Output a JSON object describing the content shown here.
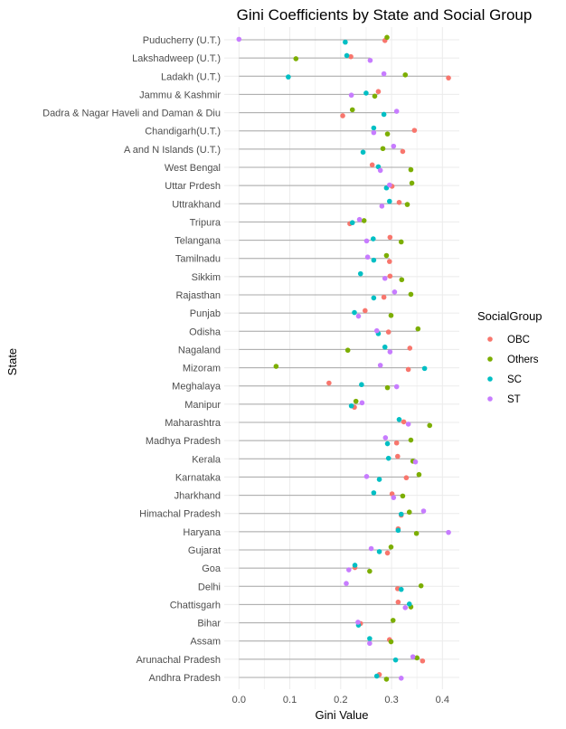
{
  "chart_data": {
    "type": "scatter",
    "title": "Gini Coefficients by State and Social Group",
    "xlabel": "Gini Value",
    "ylabel": "State",
    "xlim": [
      -0.02,
      0.43
    ],
    "xticks": [
      "0.0",
      "0.1",
      "0.2",
      "0.3",
      "0.4"
    ],
    "grid": true,
    "legend": {
      "title": "SocialGroup",
      "position": "right"
    },
    "groups": [
      "OBC",
      "Others",
      "SC",
      "ST"
    ],
    "colors": {
      "OBC": "#F8766D",
      "Others": "#7CAE00",
      "SC": "#00BFC4",
      "ST": "#C77CFF"
    },
    "states": [
      {
        "name": "Puducherry (U.T.)",
        "OBC": 0.287,
        "Others": 0.291,
        "SC": 0.209,
        "ST": 0.0
      },
      {
        "name": "Lakshadweep (U.T.)",
        "OBC": 0.22,
        "Others": 0.112,
        "SC": 0.212,
        "ST": 0.258
      },
      {
        "name": "Ladakh (U.T.)",
        "OBC": 0.412,
        "Others": 0.327,
        "SC": 0.097,
        "ST": 0.285
      },
      {
        "name": "Jammu & Kashmir",
        "OBC": 0.274,
        "Others": 0.267,
        "SC": 0.25,
        "ST": 0.221
      },
      {
        "name": "Dadra & Nagar Haveli and Daman & Diu",
        "OBC": 0.204,
        "Others": 0.223,
        "SC": 0.285,
        "ST": 0.31
      },
      {
        "name": "Chandigarh(U.T.)",
        "OBC": 0.345,
        "Others": 0.292,
        "SC": 0.265,
        "ST": 0.265
      },
      {
        "name": "A and N Islands (U.T.)",
        "OBC": 0.322,
        "Others": 0.283,
        "SC": 0.244,
        "ST": 0.304
      },
      {
        "name": "West Bengal",
        "OBC": 0.262,
        "Others": 0.338,
        "SC": 0.274,
        "ST": 0.278
      },
      {
        "name": "Uttar Prdesh",
        "OBC": 0.301,
        "Others": 0.34,
        "SC": 0.29,
        "ST": 0.296
      },
      {
        "name": "Uttrakhand",
        "OBC": 0.315,
        "Others": 0.331,
        "SC": 0.296,
        "ST": 0.281
      },
      {
        "name": "Tripura",
        "OBC": 0.218,
        "Others": 0.246,
        "SC": 0.223,
        "ST": 0.237
      },
      {
        "name": "Telangana",
        "OBC": 0.297,
        "Others": 0.319,
        "SC": 0.264,
        "ST": 0.251
      },
      {
        "name": "Tamilnadu",
        "OBC": 0.296,
        "Others": 0.29,
        "SC": 0.265,
        "ST": 0.253
      },
      {
        "name": "Sikkim",
        "OBC": 0.297,
        "Others": 0.32,
        "SC": 0.239,
        "ST": 0.287
      },
      {
        "name": "Rajasthan",
        "OBC": 0.285,
        "Others": 0.338,
        "SC": 0.265,
        "ST": 0.306
      },
      {
        "name": "Punjab",
        "OBC": 0.248,
        "Others": 0.299,
        "SC": 0.227,
        "ST": 0.235
      },
      {
        "name": "Odisha",
        "OBC": 0.294,
        "Others": 0.352,
        "SC": 0.274,
        "ST": 0.271
      },
      {
        "name": "Nagaland",
        "OBC": 0.336,
        "Others": 0.214,
        "SC": 0.287,
        "ST": 0.297
      },
      {
        "name": "Mizoram",
        "OBC": 0.333,
        "Others": 0.073,
        "SC": 0.365,
        "ST": 0.278
      },
      {
        "name": "Meghalaya",
        "OBC": 0.177,
        "Others": 0.292,
        "SC": 0.241,
        "ST": 0.31
      },
      {
        "name": "Manipur",
        "OBC": 0.227,
        "Others": 0.23,
        "SC": 0.221,
        "ST": 0.242
      },
      {
        "name": "Maharashtra",
        "OBC": 0.324,
        "Others": 0.375,
        "SC": 0.315,
        "ST": 0.333
      },
      {
        "name": "Madhya Pradesh",
        "OBC": 0.31,
        "Others": 0.338,
        "SC": 0.292,
        "ST": 0.288
      },
      {
        "name": "Kerala",
        "OBC": 0.312,
        "Others": 0.342,
        "SC": 0.294,
        "ST": 0.347
      },
      {
        "name": "Karnataka",
        "OBC": 0.329,
        "Others": 0.354,
        "SC": 0.276,
        "ST": 0.251
      },
      {
        "name": "Jharkhand",
        "OBC": 0.301,
        "Others": 0.322,
        "SC": 0.265,
        "ST": 0.304
      },
      {
        "name": "Himachal Pradesh",
        "OBC": 0.319,
        "Others": 0.335,
        "SC": 0.319,
        "ST": 0.363
      },
      {
        "name": "Haryana",
        "OBC": 0.313,
        "Others": 0.349,
        "SC": 0.313,
        "ST": 0.412
      },
      {
        "name": "Gujarat",
        "OBC": 0.292,
        "Others": 0.299,
        "SC": 0.276,
        "ST": 0.26
      },
      {
        "name": "Goa",
        "OBC": 0.228,
        "Others": 0.257,
        "SC": 0.228,
        "ST": 0.216
      },
      {
        "name": "Delhi",
        "OBC": 0.312,
        "Others": 0.358,
        "SC": 0.319,
        "ST": 0.211
      },
      {
        "name": "Chattisgarh",
        "OBC": 0.313,
        "Others": 0.338,
        "SC": 0.335,
        "ST": 0.327
      },
      {
        "name": "Bihar",
        "OBC": 0.239,
        "Others": 0.303,
        "SC": 0.235,
        "ST": 0.234
      },
      {
        "name": "Assam",
        "OBC": 0.296,
        "Others": 0.299,
        "SC": 0.257,
        "ST": 0.257
      },
      {
        "name": "Arunachal Pradesh",
        "OBC": 0.361,
        "Others": 0.35,
        "SC": 0.308,
        "ST": 0.342
      },
      {
        "name": "Andhra Pradesh",
        "OBC": 0.276,
        "Others": 0.29,
        "SC": 0.271,
        "ST": 0.319
      }
    ]
  }
}
